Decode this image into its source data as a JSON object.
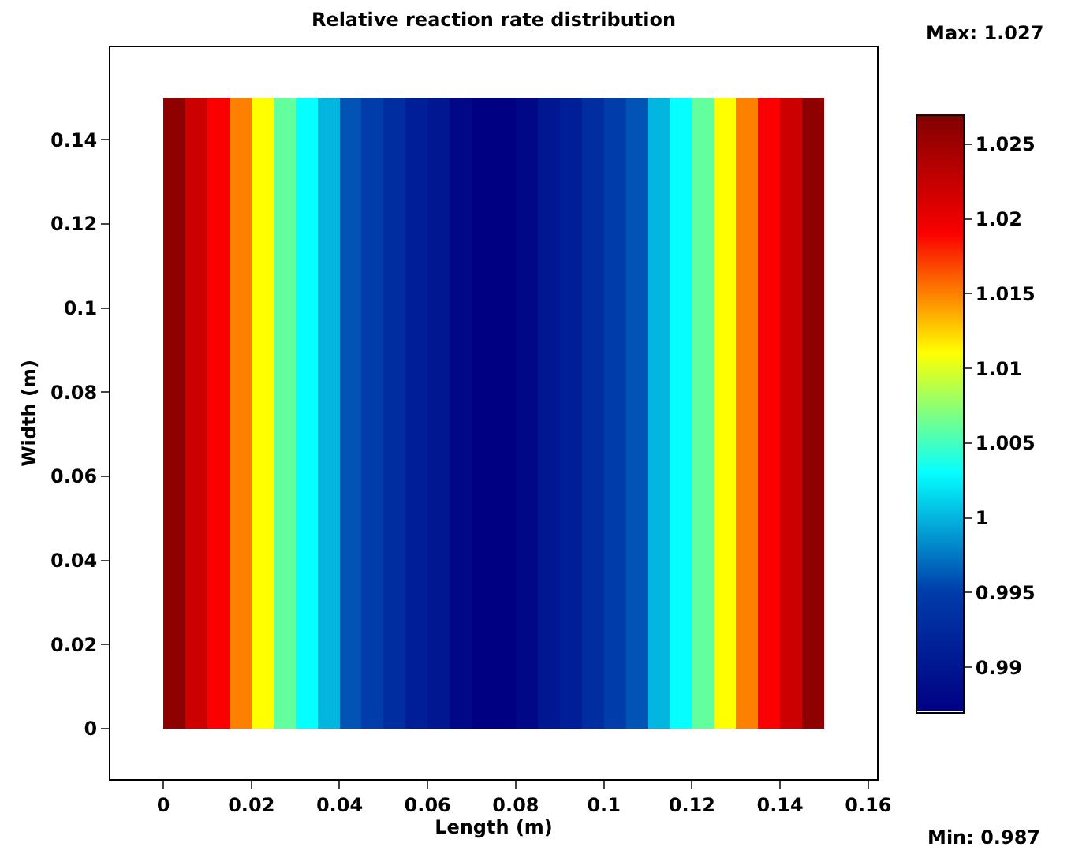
{
  "chart_data": {
    "type": "heatmap",
    "title": "Relative reaction rate distribution",
    "xlabel": "Length (m)",
    "ylabel": "Width (m)",
    "x": [
      0.0025,
      0.0075,
      0.0125,
      0.0175,
      0.0225,
      0.0275,
      0.0325,
      0.0375,
      0.0425,
      0.0475,
      0.0525,
      0.0575,
      0.0625,
      0.0675,
      0.0725,
      0.0775,
      0.0825,
      0.0875,
      0.0925,
      0.0975,
      0.1025,
      0.1075,
      0.1125,
      0.1175,
      0.1225,
      0.1275,
      0.1325,
      0.1375,
      0.1425,
      0.1475
    ],
    "y": [
      0.1125,
      0.0375
    ],
    "cells": [
      [
        1.026,
        1.022,
        1.019,
        1.015,
        1.011,
        1.006,
        1.003,
        1.0,
        0.996,
        0.995,
        0.993,
        0.991,
        0.99,
        0.988,
        0.987,
        0.987,
        0.988,
        0.99,
        0.991,
        0.993,
        0.995,
        0.996,
        1.0,
        1.003,
        1.006,
        1.011,
        1.015,
        1.019,
        1.022,
        1.026
      ],
      [
        1.026,
        1.022,
        1.019,
        1.015,
        1.011,
        1.006,
        1.003,
        1.0,
        0.996,
        0.995,
        0.993,
        0.991,
        0.99,
        0.988,
        0.987,
        0.987,
        0.988,
        0.99,
        0.991,
        0.993,
        0.995,
        0.996,
        1.0,
        1.003,
        1.006,
        1.011,
        1.015,
        1.019,
        1.022,
        1.026
      ]
    ],
    "clim": [
      0.987,
      1.027
    ],
    "cticks": [
      0.99,
      0.995,
      1,
      1.005,
      1.01,
      1.015,
      1.02,
      1.025
    ],
    "xlim": [
      -0.012,
      0.162
    ],
    "xticks": [
      0,
      0.02,
      0.04,
      0.06,
      0.08,
      0.1,
      0.12,
      0.14,
      0.16
    ],
    "ylim": [
      -0.012,
      0.162
    ],
    "yticks": [
      0,
      0.02,
      0.04,
      0.06,
      0.08,
      0.1,
      0.12,
      0.14
    ],
    "annotations": [
      "Max: 1.027",
      "Min: 0.987"
    ]
  }
}
